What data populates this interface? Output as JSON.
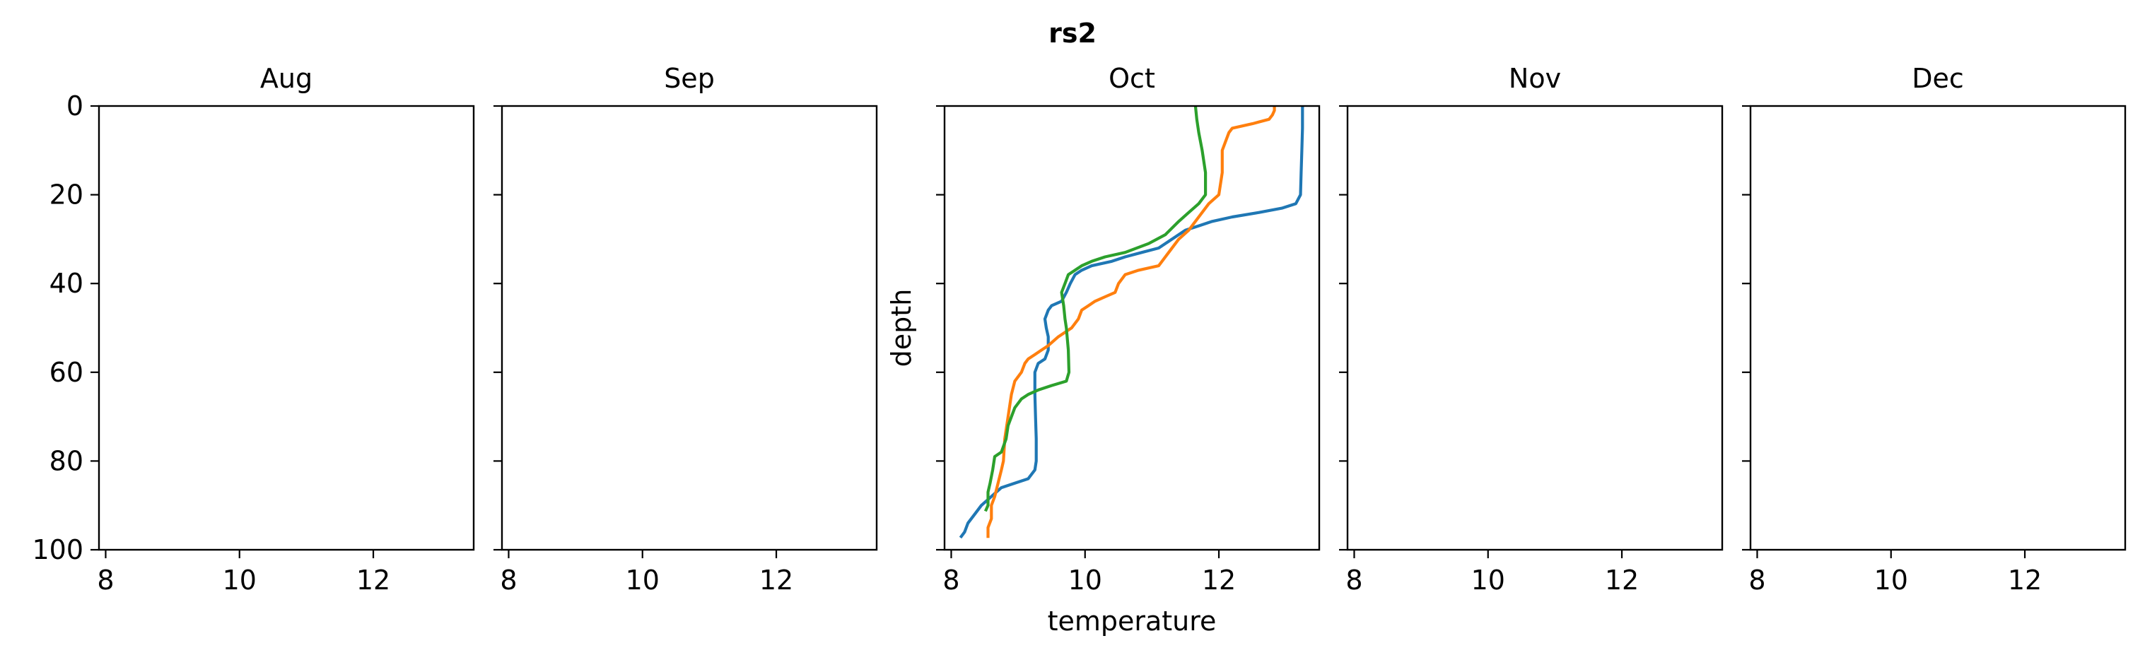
{
  "suptitle": "rs2",
  "chart_data": [
    {
      "type": "line",
      "title": "Aug",
      "xlabel": "",
      "ylabel": "",
      "xlim": [
        7.9,
        13.5
      ],
      "ylim": [
        100,
        0
      ],
      "xticks": [
        "8",
        "10",
        "12"
      ],
      "yticks": [
        "0",
        "20",
        "40",
        "60",
        "80",
        "100"
      ],
      "show_y_tick_labels": true,
      "series": []
    },
    {
      "type": "line",
      "title": "Sep",
      "xlabel": "",
      "ylabel": "",
      "xlim": [
        7.9,
        13.5
      ],
      "ylim": [
        100,
        0
      ],
      "xticks": [
        "8",
        "10",
        "12"
      ],
      "yticks": [
        "0",
        "20",
        "40",
        "60",
        "80",
        "100"
      ],
      "show_y_tick_labels": false,
      "series": []
    },
    {
      "type": "line",
      "title": "Oct",
      "xlabel": "temperature",
      "ylabel": "depth",
      "xlim": [
        7.9,
        13.5
      ],
      "ylim": [
        100,
        0
      ],
      "xticks": [
        "8",
        "10",
        "12"
      ],
      "yticks": [
        "0",
        "20",
        "40",
        "60",
        "80",
        "100"
      ],
      "show_y_tick_labels": false,
      "series": [
        {
          "color": "#1f77b4",
          "points": [
            [
              13.25,
              0
            ],
            [
              13.25,
              5
            ],
            [
              13.24,
              10
            ],
            [
              13.23,
              15
            ],
            [
              13.22,
              20
            ],
            [
              13.15,
              22
            ],
            [
              12.95,
              23
            ],
            [
              12.6,
              24
            ],
            [
              12.2,
              25
            ],
            [
              11.9,
              26
            ],
            [
              11.7,
              27
            ],
            [
              11.5,
              28
            ],
            [
              11.3,
              30
            ],
            [
              11.1,
              32
            ],
            [
              10.85,
              33
            ],
            [
              10.6,
              34
            ],
            [
              10.4,
              35
            ],
            [
              10.1,
              36
            ],
            [
              9.95,
              37
            ],
            [
              9.85,
              38
            ],
            [
              9.78,
              40
            ],
            [
              9.72,
              42
            ],
            [
              9.65,
              44
            ],
            [
              9.5,
              45
            ],
            [
              9.45,
              46
            ],
            [
              9.4,
              48
            ],
            [
              9.42,
              50
            ],
            [
              9.45,
              52
            ],
            [
              9.45,
              55
            ],
            [
              9.4,
              57
            ],
            [
              9.3,
              58
            ],
            [
              9.25,
              60
            ],
            [
              9.25,
              65
            ],
            [
              9.26,
              70
            ],
            [
              9.27,
              75
            ],
            [
              9.27,
              80
            ],
            [
              9.25,
              82
            ],
            [
              9.15,
              84
            ],
            [
              8.95,
              85
            ],
            [
              8.75,
              86
            ],
            [
              8.6,
              88
            ],
            [
              8.45,
              90
            ],
            [
              8.35,
              92
            ],
            [
              8.25,
              94
            ],
            [
              8.2,
              96
            ],
            [
              8.15,
              97
            ]
          ]
        },
        {
          "color": "#ff7f0e",
          "points": [
            [
              12.83,
              0
            ],
            [
              12.83,
              1
            ],
            [
              12.8,
              2
            ],
            [
              12.75,
              3
            ],
            [
              12.5,
              4
            ],
            [
              12.2,
              5
            ],
            [
              12.15,
              6
            ],
            [
              12.1,
              8
            ],
            [
              12.05,
              10
            ],
            [
              12.05,
              15
            ],
            [
              12.0,
              20
            ],
            [
              11.85,
              22
            ],
            [
              11.7,
              25
            ],
            [
              11.55,
              28
            ],
            [
              11.4,
              30
            ],
            [
              11.25,
              33
            ],
            [
              11.1,
              36
            ],
            [
              10.8,
              37
            ],
            [
              10.6,
              38
            ],
            [
              10.5,
              40
            ],
            [
              10.45,
              42
            ],
            [
              10.3,
              43
            ],
            [
              10.15,
              44
            ],
            [
              10.05,
              45
            ],
            [
              9.95,
              46
            ],
            [
              9.9,
              48
            ],
            [
              9.8,
              50
            ],
            [
              9.6,
              52
            ],
            [
              9.45,
              54
            ],
            [
              9.35,
              55
            ],
            [
              9.25,
              56
            ],
            [
              9.15,
              57
            ],
            [
              9.1,
              58
            ],
            [
              9.05,
              60
            ],
            [
              8.95,
              62
            ],
            [
              8.9,
              65
            ],
            [
              8.85,
              70
            ],
            [
              8.8,
              75
            ],
            [
              8.78,
              80
            ],
            [
              8.75,
              82
            ],
            [
              8.7,
              85
            ],
            [
              8.65,
              88
            ],
            [
              8.6,
              90
            ],
            [
              8.6,
              93
            ],
            [
              8.55,
              95
            ],
            [
              8.55,
              97
            ]
          ]
        },
        {
          "color": "#2ca02c",
          "points": [
            [
              11.65,
              0
            ],
            [
              11.67,
              3
            ],
            [
              11.7,
              6
            ],
            [
              11.75,
              10
            ],
            [
              11.8,
              15
            ],
            [
              11.8,
              20
            ],
            [
              11.7,
              22
            ],
            [
              11.55,
              24
            ],
            [
              11.4,
              26
            ],
            [
              11.2,
              29
            ],
            [
              10.95,
              31
            ],
            [
              10.6,
              33
            ],
            [
              10.3,
              34
            ],
            [
              10.1,
              35
            ],
            [
              9.95,
              36
            ],
            [
              9.85,
              37
            ],
            [
              9.75,
              38
            ],
            [
              9.7,
              40
            ],
            [
              9.65,
              42
            ],
            [
              9.68,
              45
            ],
            [
              9.7,
              48
            ],
            [
              9.72,
              50
            ],
            [
              9.75,
              55
            ],
            [
              9.76,
              60
            ],
            [
              9.72,
              62
            ],
            [
              9.5,
              63
            ],
            [
              9.3,
              64
            ],
            [
              9.15,
              65
            ],
            [
              9.05,
              66
            ],
            [
              8.95,
              68
            ],
            [
              8.85,
              72
            ],
            [
              8.82,
              75
            ],
            [
              8.75,
              78
            ],
            [
              8.65,
              79
            ],
            [
              8.62,
              82
            ],
            [
              8.58,
              85
            ],
            [
              8.55,
              87
            ],
            [
              8.55,
              90
            ],
            [
              8.52,
              91
            ]
          ]
        }
      ]
    },
    {
      "type": "line",
      "title": "Nov",
      "xlabel": "",
      "ylabel": "",
      "xlim": [
        7.9,
        13.5
      ],
      "ylim": [
        100,
        0
      ],
      "xticks": [
        "8",
        "10",
        "12"
      ],
      "yticks": [
        "0",
        "20",
        "40",
        "60",
        "80",
        "100"
      ],
      "show_y_tick_labels": false,
      "series": []
    },
    {
      "type": "line",
      "title": "Dec",
      "xlabel": "",
      "ylabel": "",
      "xlim": [
        7.9,
        13.5
      ],
      "ylim": [
        100,
        0
      ],
      "xticks": [
        "8",
        "10",
        "12"
      ],
      "yticks": [
        "0",
        "20",
        "40",
        "60",
        "80",
        "100"
      ],
      "show_y_tick_labels": false,
      "series": []
    }
  ]
}
